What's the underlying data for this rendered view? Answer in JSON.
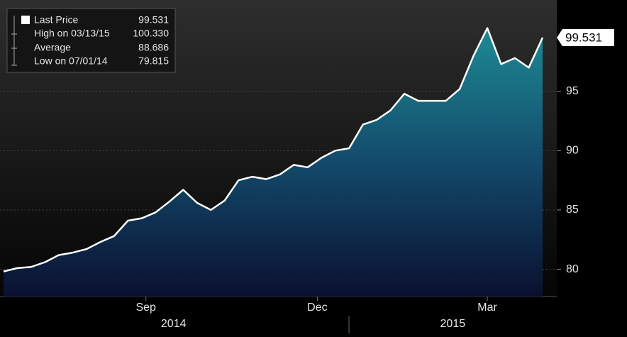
{
  "chart_data": {
    "type": "area",
    "legend": [
      {
        "name": "Last Price",
        "value": 99.531
      },
      {
        "name": "High on 03/13/15",
        "value": {
          "value": 100.33,
          "label": "100.330"
        }
      },
      {
        "name": "Average",
        "value": 88.686
      },
      {
        "name": "Low on 07/01/14",
        "value": 79.815
      }
    ],
    "categories": [
      null,
      null,
      null,
      null,
      null,
      null,
      null,
      null,
      null,
      null,
      null,
      null,
      null,
      null,
      null,
      null,
      null,
      null,
      null,
      null,
      null,
      null,
      null,
      null,
      null,
      null,
      null,
      null,
      null,
      null,
      null,
      null,
      null,
      null,
      null,
      null,
      null,
      null,
      null,
      null
    ],
    "series": [
      {
        "name": "Last Price",
        "color": "#ffffff",
        "values": [
          79.815,
          80.1,
          80.2,
          80.6,
          81.2,
          81.4,
          81.7,
          82.3,
          82.8,
          84.1,
          84.3,
          84.8,
          85.7,
          86.7,
          85.6,
          85.0,
          85.8,
          87.5,
          87.8,
          87.6,
          88.0,
          88.8,
          88.6,
          89.4,
          90.0,
          90.2,
          92.2,
          92.6,
          93.4,
          94.8,
          94.2,
          94.2,
          94.2,
          95.2,
          98.0,
          100.33,
          97.3,
          97.8,
          97.0,
          99.531
        ]
      }
    ],
    "xticks": [
      {
        "value": 10.3,
        "label": "Sep"
      },
      {
        "value": 22.7,
        "label": "Dec"
      },
      {
        "value": 35,
        "label": "Mar"
      }
    ],
    "year_ticks": [
      {
        "value": 12.3,
        "label": "2014"
      },
      {
        "value": 32.5,
        "label": "2015"
      }
    ],
    "ylim": [
      77.7,
      102.7
    ],
    "yticks": [
      80,
      85,
      90,
      95
    ],
    "grid": true
  }
}
